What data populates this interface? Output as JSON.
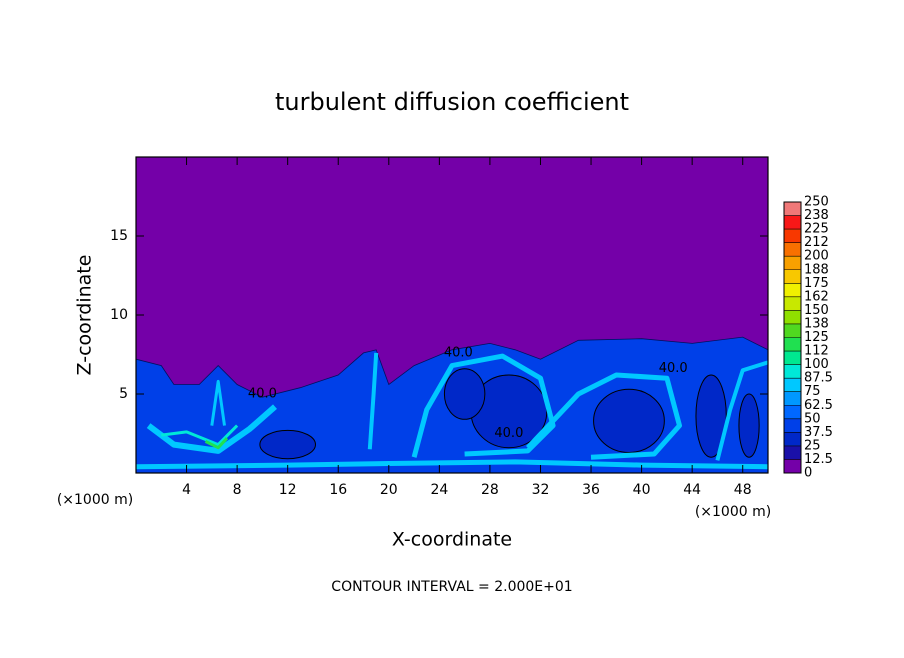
{
  "chart_data": {
    "type": "contour",
    "title": "turbulent diffusion coefficient",
    "x_label": "X-coordinate",
    "y_label": "Z-coordinate",
    "x_unit": "(×1000 m)",
    "y_unit": "(×1000 m)",
    "footer": "CONTOUR INTERVAL = 2.000E+01",
    "xlim": [
      0,
      50
    ],
    "xticks": [
      4,
      8,
      12,
      16,
      20,
      24,
      28,
      32,
      36,
      40,
      44,
      48
    ],
    "ylim": [
      0,
      20
    ],
    "yticks": [
      5,
      10,
      15
    ],
    "contour_labels": [
      "40.0",
      "40.0",
      "40.0",
      "40.0"
    ],
    "colorbar": {
      "ticks": [
        0,
        12.5,
        25,
        37.5,
        50,
        62.5,
        75,
        87.5,
        100,
        {
          "value": 112.5,
          "label": "112"
        },
        125,
        {
          "value": 137.5,
          "label": "138"
        },
        150,
        {
          "value": 162.5,
          "label": "162"
        },
        175,
        {
          "value": 187.5,
          "label": "188"
        },
        200,
        {
          "value": 212.5,
          "label": "212"
        },
        225,
        {
          "value": 237.5,
          "label": "238"
        },
        250
      ],
      "colors": [
        "#7400a8",
        "#1a10a8",
        "#0028c8",
        "#0040e8",
        "#0068ff",
        "#0098ff",
        "#00c8ff",
        "#00e8d8",
        "#00e890",
        "#20e050",
        "#50d820",
        "#90e000",
        "#c8e800",
        "#f0f000",
        "#f8c800",
        "#f8a000",
        "#f87000",
        "#f83800",
        "#f81818",
        "#f07878"
      ]
    }
  }
}
